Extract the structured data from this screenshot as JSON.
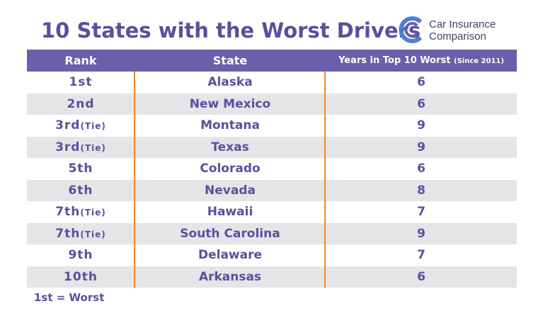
{
  "header": {
    "title": "10 States with the Worst Drivers",
    "logo_line1": "Car Insurance",
    "logo_line2": "Comparison"
  },
  "table": {
    "columns": [
      "Rank",
      "State",
      "Years in Top 10 Worst"
    ],
    "columns_note": "(Since 2011)",
    "rows": [
      {
        "rank": "1st",
        "state": "Alaska",
        "years": 6
      },
      {
        "rank": "2nd",
        "state": "New Mexico",
        "years": 6
      },
      {
        "rank": "3rd",
        "tie": "(Tie)",
        "state": "Montana",
        "years": 9
      },
      {
        "rank": "3rd",
        "tie": "(Tie)",
        "state": "Texas",
        "years": 9
      },
      {
        "rank": "5th",
        "state": "Colorado",
        "years": 6
      },
      {
        "rank": "6th",
        "state": "Nevada",
        "years": 8
      },
      {
        "rank": "7th",
        "tie": "(Tie)",
        "state": "Hawaii",
        "years": 7
      },
      {
        "rank": "7th",
        "tie": "(Tie)",
        "state": "South Carolina",
        "years": 9
      },
      {
        "rank": "9th",
        "state": "Delaware",
        "years": 7
      },
      {
        "rank": "10th",
        "state": "Arkansas",
        "years": 6
      }
    ]
  },
  "footnote": "1st = Worst"
}
